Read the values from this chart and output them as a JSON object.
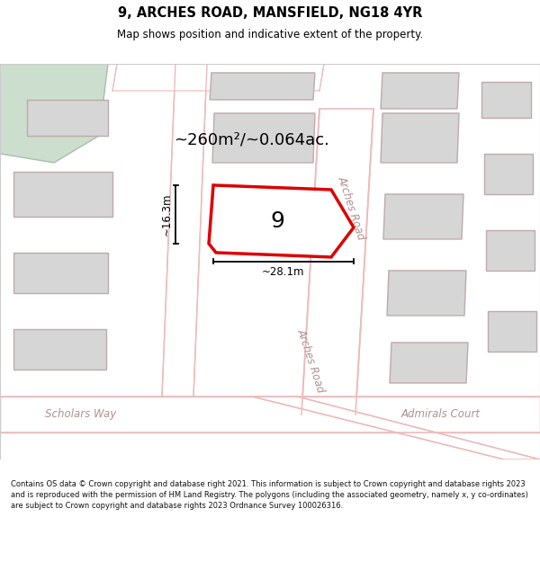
{
  "title": "9, ARCHES ROAD, MANSFIELD, NG18 4YR",
  "subtitle": "Map shows position and indicative extent of the property.",
  "footer": "Contains OS data © Crown copyright and database right 2021. This information is subject to Crown copyright and database rights 2023 and is reproduced with the permission of HM Land Registry. The polygons (including the associated geometry, namely x, y co-ordinates) are subject to Crown copyright and database rights 2023 Ordnance Survey 100026316.",
  "area_label": "~260m²/~0.064ac.",
  "property_number": "9",
  "dim_width": "~28.1m",
  "dim_height": "~16.3m",
  "map_bg": "#f7f3f3",
  "road_color": "#ebbcbc",
  "road_fill": "#ffffff",
  "building_fill": "#d6d6d6",
  "building_edge": "#bfaaaa",
  "highlight_fill": "#ffffff",
  "highlight_edge": "#dd0000",
  "green_fill": "#ccdece",
  "green_edge": "#aabcaa",
  "street_label_color": "#b09090",
  "title_color": "#000000",
  "dim_color": "#000000",
  "footer_color": "#111111"
}
